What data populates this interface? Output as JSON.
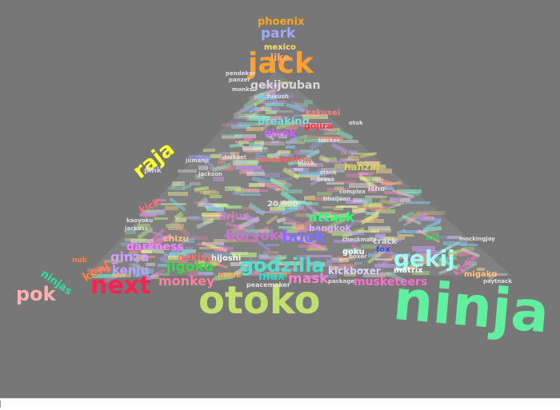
{
  "cloud": {
    "background": "#777777",
    "words": [
      {
        "text": "phoenix",
        "color": "#f5a623"
      },
      {
        "text": "park",
        "color": "#a0a8ff"
      },
      {
        "text": "mexico",
        "color": "#ffe066"
      },
      {
        "text": "jack",
        "color": "#ffa030"
      },
      {
        "text": "like",
        "color": "#ffb060"
      },
      {
        "text": "gekijouban",
        "color": "#d8d8d8"
      },
      {
        "text": "raja",
        "color": "#ffff33"
      },
      {
        "text": "breaking",
        "color": "#70e0e0"
      },
      {
        "text": "blank",
        "color": "#d060ff"
      },
      {
        "text": "kakusei",
        "color": "#ff8080"
      },
      {
        "text": "gojira",
        "color": "#ff3040"
      },
      {
        "text": "awakening",
        "color": "#ff6060"
      },
      {
        "text": "hanzai",
        "color": "#e0d060"
      },
      {
        "text": "kick",
        "color": "#ff7070"
      },
      {
        "text": "arjun",
        "color": "#d080c0"
      },
      {
        "text": "20,000",
        "color": "#e0e0e0"
      },
      {
        "text": "attack",
        "color": "#30ff80"
      },
      {
        "text": "bangkok",
        "color": "#e0b0ff"
      },
      {
        "text": "boryoku",
        "color": "#d070d0"
      },
      {
        "text": "book",
        "color": "#8070ff"
      },
      {
        "text": "darkness",
        "color": "#ff80ff"
      },
      {
        "text": "chizu",
        "color": "#ffc080"
      },
      {
        "text": "ginza",
        "color": "#d0a0ff"
      },
      {
        "text": "gekij",
        "color": "#a0ffff"
      },
      {
        "text": "godzilla",
        "color": "#50e0d0"
      },
      {
        "text": "max",
        "color": "#30d8d8"
      },
      {
        "text": "kenju",
        "color": "#c0a0ff"
      },
      {
        "text": "kenj",
        "color": "#ff8040"
      },
      {
        "text": "jigoku",
        "color": "#30e040"
      },
      {
        "text": "gekisy",
        "color": "#ff7070"
      },
      {
        "text": "hijoshi",
        "color": "#ffffff"
      },
      {
        "text": "ninjas",
        "color": "#30e0a0"
      },
      {
        "text": "pok",
        "color": "#ffb0b0"
      },
      {
        "text": "next",
        "color": "#ff2050"
      },
      {
        "text": "monkey",
        "color": "#ff80a0"
      },
      {
        "text": "otoko",
        "color": "#c0e070"
      },
      {
        "text": "mask",
        "color": "#ff80d0"
      },
      {
        "text": "kickboxer",
        "color": "#e0d0ff"
      },
      {
        "text": "musketeers",
        "color": "#ff70d0"
      },
      {
        "text": "matrix",
        "color": "#ffffff"
      },
      {
        "text": "kiz",
        "color": "#30d060"
      },
      {
        "text": "crack",
        "color": "#e0e0e0"
      },
      {
        "text": "fox",
        "color": "#4040ff"
      },
      {
        "text": "goku",
        "color": "#ffffff"
      },
      {
        "text": "ninja",
        "color": "#60f0a0"
      },
      {
        "text": "migaku",
        "color": "#ffc080"
      },
      {
        "text": "kyojin",
        "color": "#ff70c0"
      },
      {
        "text": "peacemaker",
        "color": "#e0e0e0"
      },
      {
        "text": "maze",
        "color": "#ffb060"
      },
      {
        "text": "pink",
        "color": "#d0d0ff"
      },
      {
        "text": "checkmate",
        "color": "#e0e0e0"
      },
      {
        "text": "panzer",
        "color": "#e0e0e0"
      },
      {
        "text": "pendekar",
        "color": "#e0e0e0"
      },
      {
        "text": "fukush",
        "color": "#e0e0e0"
      },
      {
        "text": "monks",
        "color": "#e0e0e0"
      },
      {
        "text": "hacker",
        "color": "#e0e0e0"
      },
      {
        "text": "clank",
        "color": "#e0e0e0"
      },
      {
        "text": "darkest",
        "color": "#e0e0e0"
      },
      {
        "text": "block",
        "color": "#e0e0e0"
      },
      {
        "text": "jumanji",
        "color": "#e0e0e0"
      },
      {
        "text": "bhaijaan",
        "color": "#e0e0e0"
      },
      {
        "text": "isho",
        "color": "#e0e0e0"
      },
      {
        "text": "boxer",
        "color": "#e0e0e0"
      },
      {
        "text": "package",
        "color": "#e0e0e0"
      },
      {
        "text": "mockingjay",
        "color": "#e0e0e0"
      },
      {
        "text": "paytnack",
        "color": "#e0e0e0"
      },
      {
        "text": "kaoyoku",
        "color": "#e0e0e0"
      },
      {
        "text": "jackass",
        "color": "#e0e0e0"
      },
      {
        "text": "nuk",
        "color": "#ff8040"
      },
      {
        "text": "otok",
        "color": "#e0e0e0"
      },
      {
        "text": "jackson",
        "color": "#e0e0e0"
      },
      {
        "text": "complex",
        "color": "#e0e0e0"
      },
      {
        "text": "break",
        "color": "#e0e0e0"
      }
    ]
  }
}
